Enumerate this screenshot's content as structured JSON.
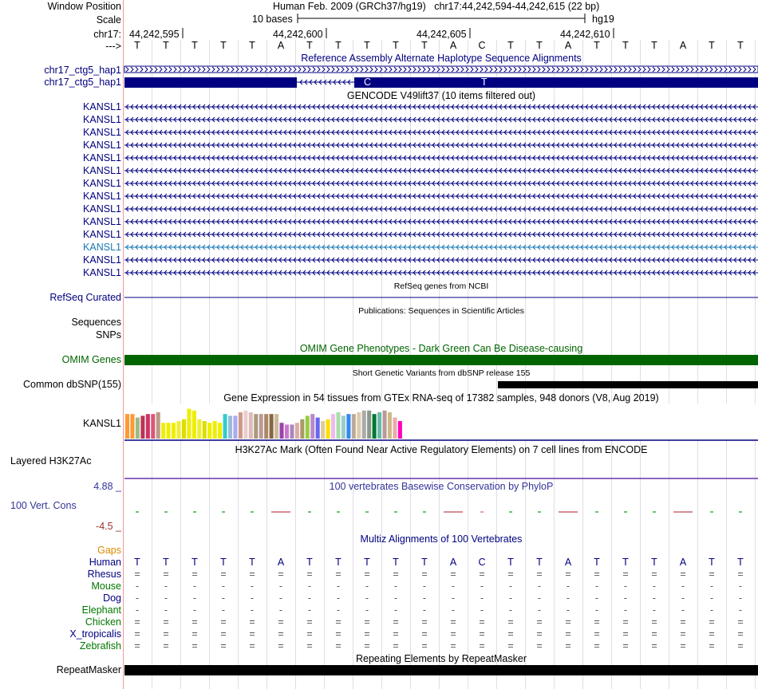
{
  "header": {
    "window_position_label": "Window Position",
    "scale_label": "Scale",
    "chrom_label": "chr17:",
    "strand_label": "--->",
    "assembly_info": "Human Feb. 2009 (GRCh37/hg19)   chr17:44,242,594-44,242,615 (22 bp)",
    "scale_text": "10 bases",
    "db_label": "hg19",
    "positions": [
      "44,242,595",
      "44,242,600",
      "44,242,605",
      "44,242,610"
    ]
  },
  "bases": [
    "T",
    "T",
    "T",
    "T",
    "T",
    "A",
    "T",
    "T",
    "T",
    "T",
    "T",
    "A",
    "C",
    "T",
    "T",
    "A",
    "T",
    "T",
    "T",
    "A",
    "T",
    "T"
  ],
  "tracks": {
    "alt_haplotype": {
      "title": "Reference Assembly Alternate Haplotype Sequence Alignments",
      "rows": [
        "chr17_ctg5_hap1",
        "chr17_ctg5_hap1"
      ],
      "mismatch_bases": [
        "C",
        "T"
      ]
    },
    "gencode": {
      "title": "GENCODE V49lift37 (10 items filtered out)",
      "rows": [
        "KANSL1",
        "KANSL1",
        "KANSL1",
        "KANSL1",
        "KANSL1",
        "KANSL1",
        "KANSL1",
        "KANSL1",
        "KANSL1",
        "KANSL1",
        "KANSL1",
        "KANSL1",
        "KANSL1",
        "KANSL1"
      ],
      "highlight_row": 11,
      "color": "#000080",
      "highlight_color": "#1a78b4"
    },
    "refseq": {
      "title": "RefSeq genes from NCBI",
      "label": "RefSeq Curated"
    },
    "publications": {
      "title": "Publications: Sequences in Scientific Articles",
      "labels": [
        "Sequences",
        "SNPs"
      ]
    },
    "omim": {
      "title": "OMIM Gene Phenotypes - Dark Green Can Be Disease-causing",
      "label": "OMIM Genes",
      "color": "#006400"
    },
    "dbsnp": {
      "title": "Short Genetic Variants from dbSNP release 155",
      "label": "Common dbSNP(155)"
    },
    "gtex": {
      "title": "Gene Expression in 54 tissues from GTEx RNA-seq of 17382 samples, 948 donors (V8, Aug 2019)",
      "label": "KANSL1",
      "levels": [
        0.7,
        0.7,
        0.6,
        0.65,
        0.7,
        0.7,
        0.75,
        0.45,
        0.45,
        0.45,
        0.5,
        0.55,
        0.85,
        0.8,
        0.55,
        0.5,
        0.45,
        0.5,
        0.45,
        0.7,
        0.65,
        0.65,
        0.75,
        0.8,
        0.75,
        0.7,
        0.7,
        0.7,
        0.7,
        0.7,
        0.45,
        0.4,
        0.4,
        0.45,
        0.55,
        0.65,
        0.7,
        0.6,
        0.5,
        0.55,
        0.7,
        0.75,
        0.65,
        0.7,
        0.7,
        0.75,
        0.8,
        0.8,
        0.7,
        0.75,
        0.8,
        0.75,
        0.6,
        0.5
      ],
      "colors": [
        "#FF9933",
        "#FF9933",
        "#99BB88",
        "#BB3355",
        "#CC3366",
        "#DD5577",
        "#BB9988",
        "#EEEE00",
        "#EEEE00",
        "#EEEE00",
        "#EEEE33",
        "#DDDD00",
        "#EEEE00",
        "#EEEE00",
        "#EEEE33",
        "#DDDD00",
        "#EEEE00",
        "#EEEE00",
        "#EEEE00",
        "#33CCCC",
        "#99BBDD",
        "#AAAAEE",
        "#CC9988",
        "#EECCCC",
        "#DDBBBB",
        "#AA9977",
        "#BB9999",
        "#AA8866",
        "#886644",
        "#CCBB99",
        "#9944AA",
        "#CC77CC",
        "#AA88BB",
        "#DDAAAA",
        "#AA9966",
        "#99CC44",
        "#BB88CC",
        "#6666EE",
        "#DDCC99",
        "#FFDD00",
        "#EEBBEE",
        "#AADDAA",
        "#99CCCC",
        "#3388EE",
        "#BBAA99",
        "#DDCCAA",
        "#AAAAAA",
        "#889988",
        "#007733",
        "#66BBAA",
        "#BB9999",
        "#CCBB88",
        "#EEAAAA",
        "#FF00BB"
      ]
    },
    "h3k27ac": {
      "title": "H3K27Ac Mark (Often Found Near Active Regulatory Elements) on 7 cell lines from ENCODE",
      "label": "Layered H3K27Ac"
    },
    "conservation": {
      "title": "100 vertebrates Basewise Conservation by PhyloP",
      "label": "100 Vert. Cons",
      "max_label": "4.88 _",
      "min_label": "-4.5 _"
    },
    "multiz": {
      "title": "Multiz Alignments of 100 Vertebrates",
      "gaps_label": "Gaps",
      "species": [
        {
          "name": "Human",
          "color": "#000080",
          "sym": "base"
        },
        {
          "name": "Rhesus",
          "color": "#000080",
          "sym": "="
        },
        {
          "name": "Mouse",
          "color": "#007700",
          "sym": "-"
        },
        {
          "name": "Dog",
          "color": "#000080",
          "sym": "-"
        },
        {
          "name": "Elephant",
          "color": "#007700",
          "sym": "-"
        },
        {
          "name": "Chicken",
          "color": "#007700",
          "sym": "="
        },
        {
          "name": "X_tropicalis",
          "color": "#000080",
          "sym": "="
        },
        {
          "name": "Zebrafish",
          "color": "#007700",
          "sym": "="
        }
      ]
    },
    "repeatmasker": {
      "title": "Repeating Elements by RepeatMasker",
      "label": "RepeatMasker"
    }
  },
  "colors": {
    "gap_label": "#dd8800",
    "cons_label": "#333399",
    "cons_max": "#333399",
    "cons_min": "#993333",
    "dbsnp_bar": "#000000"
  }
}
